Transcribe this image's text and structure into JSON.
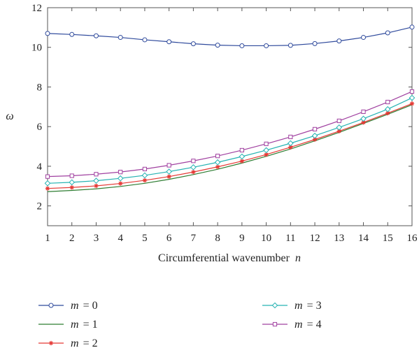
{
  "chart_data": {
    "type": "line",
    "title": "",
    "xlabel": "Circumferential wavenumber",
    "xlabel_var": "n",
    "ylabel": "ω",
    "xlim": [
      1,
      16
    ],
    "ylim": [
      1,
      12
    ],
    "x_ticks": [
      1,
      2,
      3,
      4,
      5,
      6,
      7,
      8,
      9,
      10,
      11,
      12,
      13,
      14,
      15,
      16
    ],
    "y_ticks": [
      2,
      4,
      6,
      8,
      10,
      12
    ],
    "grid": false,
    "legend_position": "bottom",
    "x": [
      1,
      2,
      3,
      4,
      5,
      6,
      7,
      8,
      9,
      10,
      11,
      12,
      13,
      14,
      15,
      16
    ],
    "series": [
      {
        "name_var": "m",
        "name_eq": "= 0",
        "color": "#2f4a9c",
        "marker": "circle",
        "values": [
          10.7,
          10.65,
          10.58,
          10.5,
          10.38,
          10.28,
          10.18,
          10.11,
          10.08,
          10.08,
          10.1,
          10.19,
          10.32,
          10.5,
          10.73,
          11.02
        ]
      },
      {
        "name_var": "m",
        "name_eq": "= 1",
        "color": "#2e7d32",
        "marker": "none",
        "values": [
          2.72,
          2.78,
          2.86,
          2.98,
          3.14,
          3.34,
          3.58,
          3.85,
          4.16,
          4.5,
          4.87,
          5.28,
          5.71,
          6.16,
          6.62,
          7.1
        ]
      },
      {
        "name_var": "m",
        "name_eq": "= 2",
        "color": "#e53935",
        "marker": "star",
        "values": [
          2.88,
          2.93,
          3.01,
          3.13,
          3.29,
          3.48,
          3.71,
          3.97,
          4.26,
          4.59,
          4.96,
          5.35,
          5.77,
          6.21,
          6.68,
          7.16
        ]
      },
      {
        "name_var": "m",
        "name_eq": "= 3",
        "color": "#26b3b3",
        "marker": "diamond",
        "values": [
          3.14,
          3.19,
          3.27,
          3.39,
          3.54,
          3.73,
          3.95,
          4.2,
          4.49,
          4.81,
          5.16,
          5.54,
          5.96,
          6.4,
          6.88,
          7.45
        ]
      },
      {
        "name_var": "m",
        "name_eq": "= 4",
        "color": "#a040a0",
        "marker": "square",
        "values": [
          3.48,
          3.52,
          3.6,
          3.71,
          3.86,
          4.05,
          4.27,
          4.52,
          4.81,
          5.13,
          5.48,
          5.87,
          6.29,
          6.75,
          7.24,
          7.77
        ]
      }
    ]
  }
}
